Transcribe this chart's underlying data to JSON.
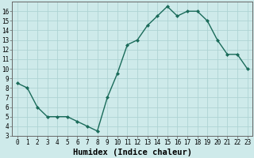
{
  "x": [
    0,
    1,
    2,
    3,
    4,
    5,
    6,
    7,
    8,
    9,
    10,
    11,
    12,
    13,
    14,
    15,
    16,
    17,
    18,
    19,
    20,
    21,
    22,
    23
  ],
  "y": [
    8.5,
    8.0,
    6.0,
    5.0,
    5.0,
    5.0,
    4.5,
    4.0,
    3.5,
    7.0,
    9.5,
    12.5,
    13.0,
    14.5,
    15.5,
    16.5,
    15.5,
    16.0,
    16.0,
    15.0,
    13.0,
    11.5,
    11.5,
    10.0
  ],
  "line_color": "#1a6b5a",
  "marker": "D",
  "marker_size": 2.0,
  "bg_color": "#ceeaea",
  "grid_color": "#aed4d4",
  "xlabel": "Humidex (Indice chaleur)",
  "xlim": [
    -0.5,
    23.5
  ],
  "ylim": [
    3,
    17
  ],
  "yticks": [
    3,
    4,
    5,
    6,
    7,
    8,
    9,
    10,
    11,
    12,
    13,
    14,
    15,
    16
  ],
  "xticks": [
    0,
    1,
    2,
    3,
    4,
    5,
    6,
    7,
    8,
    9,
    10,
    11,
    12,
    13,
    14,
    15,
    16,
    17,
    18,
    19,
    20,
    21,
    22,
    23
  ],
  "xtick_labels": [
    "0",
    "1",
    "2",
    "3",
    "4",
    "5",
    "6",
    "7",
    "8",
    "9",
    "10",
    "11",
    "12",
    "13",
    "14",
    "15",
    "16",
    "17",
    "18",
    "19",
    "20",
    "21",
    "22",
    "23"
  ],
  "tick_fontsize": 5.5,
  "xlabel_fontsize": 7.5,
  "linewidth": 1.0
}
